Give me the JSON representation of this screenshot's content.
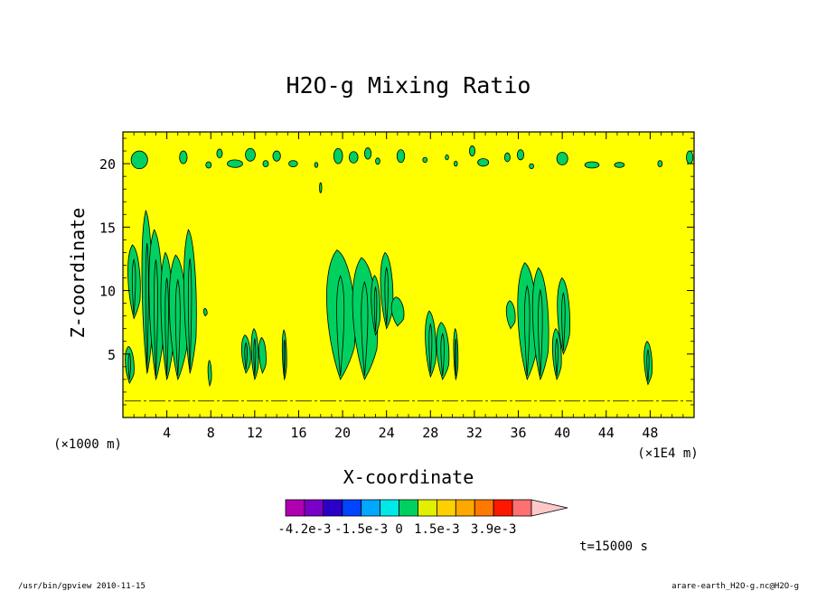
{
  "chart_data": {
    "type": "heatmap",
    "title": "H2O-g Mixing Ratio",
    "xlabel": "X-coordinate",
    "ylabel": "Z-coordinate",
    "x_unit": "(×1E4 m)",
    "y_unit": "(×1000 m)",
    "xlim": [
      0,
      52
    ],
    "ylim": [
      0,
      22.5
    ],
    "x_ticks": [
      4,
      8,
      12,
      16,
      20,
      24,
      28,
      32,
      36,
      40,
      44,
      48
    ],
    "y_ticks": [
      5,
      10,
      15,
      20
    ],
    "background_level": "0",
    "background_color": "#ffff00",
    "colorbar": {
      "colors": [
        "#b000b0",
        "#7a00c8",
        "#2a00c8",
        "#0044ff",
        "#00a8ff",
        "#00e8e8",
        "#00d060",
        "#e0f000",
        "#ffd000",
        "#ffa800",
        "#ff7800",
        "#ff1800",
        "#ff7070"
      ],
      "overflow_color": "#ffc8c8",
      "tick_labels": [
        "-4.2e-3",
        "-1.5e-3",
        "0",
        "1.5e-3",
        "3.9e-3"
      ]
    },
    "anomalies": [
      {
        "level": "green",
        "x": 0.6,
        "z_bottom": 2.7,
        "z_top": 5.6,
        "halfwidth": 0.5
      },
      {
        "level": "green",
        "x": 1.0,
        "z_bottom": 7.8,
        "z_top": 13.6,
        "halfwidth": 0.7
      },
      {
        "level": "green",
        "x": 2.2,
        "z_bottom": 3.5,
        "z_top": 16.3,
        "halfwidth": 0.6
      },
      {
        "level": "green",
        "x": 3.0,
        "z_bottom": 3.0,
        "z_top": 14.8,
        "halfwidth": 0.8
      },
      {
        "level": "green",
        "x": 4.0,
        "z_bottom": 3.0,
        "z_top": 13.0,
        "halfwidth": 0.7
      },
      {
        "level": "green",
        "x": 5.0,
        "z_bottom": 3.0,
        "z_top": 12.8,
        "halfwidth": 1.0
      },
      {
        "level": "green",
        "x": 6.1,
        "z_bottom": 3.5,
        "z_top": 14.8,
        "halfwidth": 0.7
      },
      {
        "level": "green",
        "x": 7.5,
        "z_bottom": 8.0,
        "z_top": 8.6,
        "halfwidth": 0.2
      },
      {
        "level": "green",
        "x": 7.9,
        "z_bottom": 2.5,
        "z_top": 4.5,
        "halfwidth": 0.2
      },
      {
        "level": "green",
        "x": 11.2,
        "z_bottom": 3.5,
        "z_top": 6.5,
        "halfwidth": 0.5
      },
      {
        "level": "green",
        "x": 12.0,
        "z_bottom": 3.0,
        "z_top": 7.0,
        "halfwidth": 0.4
      },
      {
        "level": "green",
        "x": 12.7,
        "z_bottom": 3.5,
        "z_top": 6.3,
        "halfwidth": 0.4
      },
      {
        "level": "green",
        "x": 14.7,
        "z_bottom": 3.0,
        "z_top": 6.9,
        "halfwidth": 0.25
      },
      {
        "level": "green",
        "x": 19.8,
        "z_bottom": 3.0,
        "z_top": 13.2,
        "halfwidth": 1.6
      },
      {
        "level": "green",
        "x": 22.0,
        "z_bottom": 3.0,
        "z_top": 12.6,
        "halfwidth": 1.4
      },
      {
        "level": "green",
        "x": 23.0,
        "z_bottom": 6.5,
        "z_top": 11.2,
        "halfwidth": 0.5
      },
      {
        "level": "green",
        "x": 24.0,
        "z_bottom": 7.0,
        "z_top": 13.0,
        "halfwidth": 0.7
      },
      {
        "level": "green",
        "x": 25.0,
        "z_bottom": 7.2,
        "z_top": 9.5,
        "halfwidth": 0.7
      },
      {
        "level": "green",
        "x": 28.0,
        "z_bottom": 3.2,
        "z_top": 8.4,
        "halfwidth": 0.6
      },
      {
        "level": "green",
        "x": 29.1,
        "z_bottom": 3.0,
        "z_top": 7.5,
        "halfwidth": 0.7
      },
      {
        "level": "green",
        "x": 30.3,
        "z_bottom": 3.0,
        "z_top": 7.0,
        "halfwidth": 0.25
      },
      {
        "level": "green",
        "x": 35.3,
        "z_bottom": 7.0,
        "z_top": 9.2,
        "halfwidth": 0.5
      },
      {
        "level": "green",
        "x": 36.8,
        "z_bottom": 3.0,
        "z_top": 12.2,
        "halfwidth": 1.1
      },
      {
        "level": "green",
        "x": 38.0,
        "z_bottom": 3.0,
        "z_top": 11.8,
        "halfwidth": 0.9
      },
      {
        "level": "green",
        "x": 39.5,
        "z_bottom": 3.0,
        "z_top": 7.0,
        "halfwidth": 0.5
      },
      {
        "level": "green",
        "x": 40.1,
        "z_bottom": 5.0,
        "z_top": 11.0,
        "halfwidth": 0.7
      },
      {
        "level": "green",
        "x": 47.8,
        "z_bottom": 2.6,
        "z_top": 6.0,
        "halfwidth": 0.45
      }
    ],
    "upper_band": [
      {
        "x": 1.5,
        "z": 20.3,
        "w": 1.5,
        "h": 1.4
      },
      {
        "x": 5.5,
        "z": 20.5,
        "w": 0.7,
        "h": 1.0
      },
      {
        "x": 7.8,
        "z": 19.9,
        "w": 0.5,
        "h": 0.5
      },
      {
        "x": 8.8,
        "z": 20.8,
        "w": 0.5,
        "h": 0.7
      },
      {
        "x": 10.2,
        "z": 20.0,
        "w": 1.4,
        "h": 0.6
      },
      {
        "x": 11.6,
        "z": 20.7,
        "w": 0.9,
        "h": 1.0
      },
      {
        "x": 13.0,
        "z": 20.0,
        "w": 0.5,
        "h": 0.5
      },
      {
        "x": 14.0,
        "z": 20.6,
        "w": 0.7,
        "h": 0.8
      },
      {
        "x": 15.5,
        "z": 20.0,
        "w": 0.8,
        "h": 0.5
      },
      {
        "x": 17.6,
        "z": 19.9,
        "w": 0.3,
        "h": 0.4
      },
      {
        "x": 18.0,
        "z": 18.1,
        "w": 0.2,
        "h": 0.8
      },
      {
        "x": 19.6,
        "z": 20.6,
        "w": 0.8,
        "h": 1.2
      },
      {
        "x": 21.0,
        "z": 20.5,
        "w": 0.8,
        "h": 0.9
      },
      {
        "x": 22.3,
        "z": 20.8,
        "w": 0.6,
        "h": 0.9
      },
      {
        "x": 23.2,
        "z": 20.2,
        "w": 0.4,
        "h": 0.5
      },
      {
        "x": 25.3,
        "z": 20.6,
        "w": 0.7,
        "h": 1.0
      },
      {
        "x": 27.5,
        "z": 20.3,
        "w": 0.4,
        "h": 0.4
      },
      {
        "x": 29.5,
        "z": 20.5,
        "w": 0.3,
        "h": 0.4
      },
      {
        "x": 30.3,
        "z": 20.0,
        "w": 0.3,
        "h": 0.4
      },
      {
        "x": 31.8,
        "z": 21.0,
        "w": 0.5,
        "h": 0.8
      },
      {
        "x": 32.8,
        "z": 20.1,
        "w": 1.0,
        "h": 0.6
      },
      {
        "x": 35.0,
        "z": 20.5,
        "w": 0.5,
        "h": 0.7
      },
      {
        "x": 36.2,
        "z": 20.7,
        "w": 0.6,
        "h": 0.8
      },
      {
        "x": 37.2,
        "z": 19.8,
        "w": 0.4,
        "h": 0.4
      },
      {
        "x": 40.0,
        "z": 20.4,
        "w": 1.0,
        "h": 1.0
      },
      {
        "x": 42.7,
        "z": 19.9,
        "w": 1.3,
        "h": 0.5
      },
      {
        "x": 45.2,
        "z": 19.9,
        "w": 0.9,
        "h": 0.4
      },
      {
        "x": 48.9,
        "z": 20.0,
        "w": 0.4,
        "h": 0.5
      },
      {
        "x": 51.6,
        "z": 20.5,
        "w": 0.6,
        "h": 1.0
      }
    ]
  },
  "time_label": "t=15000 s",
  "footer": {
    "left": "/usr/bin/gpview  2010-11-15",
    "right": "arare-earth_H2O-g.nc@H2O-g"
  }
}
